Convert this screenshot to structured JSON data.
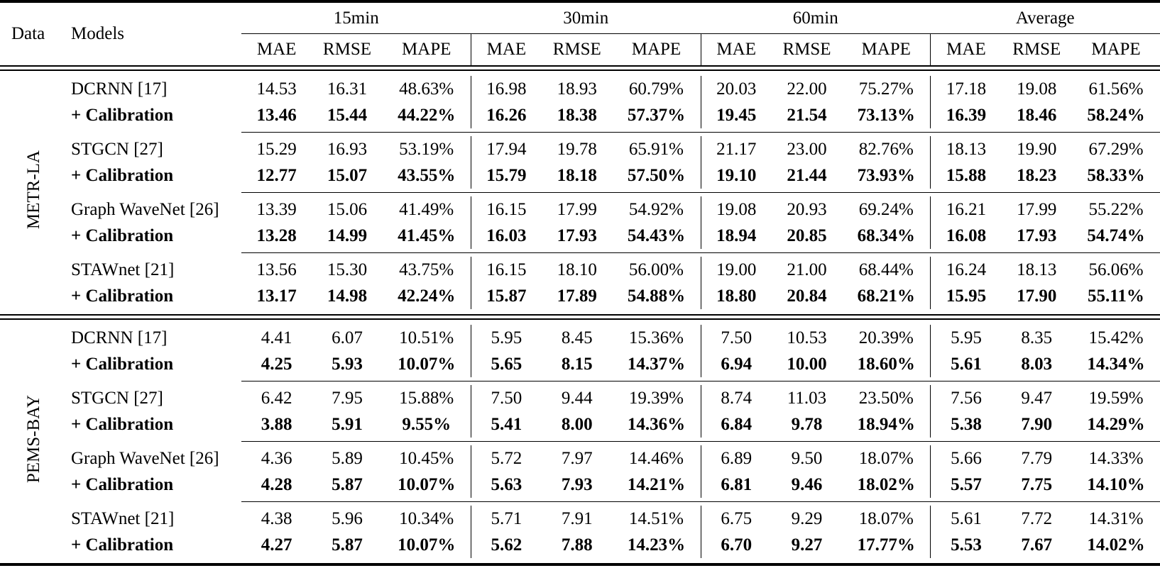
{
  "page": {
    "background": "#ffffff",
    "text_color": "#000000"
  },
  "table": {
    "corner": {
      "data_label": "Data",
      "models_label": "Models"
    },
    "horizons": [
      "15min",
      "30min",
      "60min",
      "Average"
    ],
    "metrics": [
      "MAE",
      "RMSE",
      "MAPE"
    ],
    "calibration_label": "+ Calibration",
    "sections": [
      {
        "dataset": "METR-LA",
        "groups": [
          {
            "model": "DCRNN [17]",
            "base_values": [
              "14.53",
              "16.31",
              "48.63%",
              "16.98",
              "18.93",
              "60.79%",
              "20.03",
              "22.00",
              "75.27%",
              "17.18",
              "19.08",
              "61.56%"
            ],
            "calibration_values": [
              "13.46",
              "15.44",
              "44.22%",
              "16.26",
              "18.38",
              "57.37%",
              "19.45",
              "21.54",
              "73.13%",
              "16.39",
              "18.46",
              "58.24%"
            ]
          },
          {
            "model": "STGCN [27]",
            "base_values": [
              "15.29",
              "16.93",
              "53.19%",
              "17.94",
              "19.78",
              "65.91%",
              "21.17",
              "23.00",
              "82.76%",
              "18.13",
              "19.90",
              "67.29%"
            ],
            "calibration_values": [
              "12.77",
              "15.07",
              "43.55%",
              "15.79",
              "18.18",
              "57.50%",
              "19.10",
              "21.44",
              "73.93%",
              "15.88",
              "18.23",
              "58.33%"
            ]
          },
          {
            "model": "Graph WaveNet [26]",
            "base_values": [
              "13.39",
              "15.06",
              "41.49%",
              "16.15",
              "17.99",
              "54.92%",
              "19.08",
              "20.93",
              "69.24%",
              "16.21",
              "17.99",
              "55.22%"
            ],
            "calibration_values": [
              "13.28",
              "14.99",
              "41.45%",
              "16.03",
              "17.93",
              "54.43%",
              "18.94",
              "20.85",
              "68.34%",
              "16.08",
              "17.93",
              "54.74%"
            ]
          },
          {
            "model": "STAWnet [21]",
            "base_values": [
              "13.56",
              "15.30",
              "43.75%",
              "16.15",
              "18.10",
              "56.00%",
              "19.00",
              "21.00",
              "68.44%",
              "16.24",
              "18.13",
              "56.06%"
            ],
            "calibration_values": [
              "13.17",
              "14.98",
              "42.24%",
              "15.87",
              "17.89",
              "54.88%",
              "18.80",
              "20.84",
              "68.21%",
              "15.95",
              "17.90",
              "55.11%"
            ]
          }
        ]
      },
      {
        "dataset": "PEMS-BAY",
        "groups": [
          {
            "model": "DCRNN [17]",
            "base_values": [
              "4.41",
              "6.07",
              "10.51%",
              "5.95",
              "8.45",
              "15.36%",
              "7.50",
              "10.53",
              "20.39%",
              "5.95",
              "8.35",
              "15.42%"
            ],
            "calibration_values": [
              "4.25",
              "5.93",
              "10.07%",
              "5.65",
              "8.15",
              "14.37%",
              "6.94",
              "10.00",
              "18.60%",
              "5.61",
              "8.03",
              "14.34%"
            ]
          },
          {
            "model": "STGCN [27]",
            "base_values": [
              "6.42",
              "7.95",
              "15.88%",
              "7.50",
              "9.44",
              "19.39%",
              "8.74",
              "11.03",
              "23.50%",
              "7.56",
              "9.47",
              "19.59%"
            ],
            "calibration_values": [
              "3.88",
              "5.91",
              "9.55%",
              "5.41",
              "8.00",
              "14.36%",
              "6.84",
              "9.78",
              "18.94%",
              "5.38",
              "7.90",
              "14.29%"
            ]
          },
          {
            "model": "Graph WaveNet [26]",
            "base_values": [
              "4.36",
              "5.89",
              "10.45%",
              "5.72",
              "7.97",
              "14.46%",
              "6.89",
              "9.50",
              "18.07%",
              "5.66",
              "7.79",
              "14.33%"
            ],
            "calibration_values": [
              "4.28",
              "5.87",
              "10.07%",
              "5.63",
              "7.93",
              "14.21%",
              "6.81",
              "9.46",
              "18.02%",
              "5.57",
              "7.75",
              "14.10%"
            ]
          },
          {
            "model": "STAWnet [21]",
            "base_values": [
              "4.38",
              "5.96",
              "10.34%",
              "5.71",
              "7.91",
              "14.51%",
              "6.75",
              "9.29",
              "18.07%",
              "5.61",
              "7.72",
              "14.31%"
            ],
            "calibration_values": [
              "4.27",
              "5.87",
              "10.07%",
              "5.62",
              "7.88",
              "14.23%",
              "6.70",
              "9.27",
              "17.77%",
              "5.53",
              "7.67",
              "14.02%"
            ]
          }
        ]
      }
    ]
  }
}
